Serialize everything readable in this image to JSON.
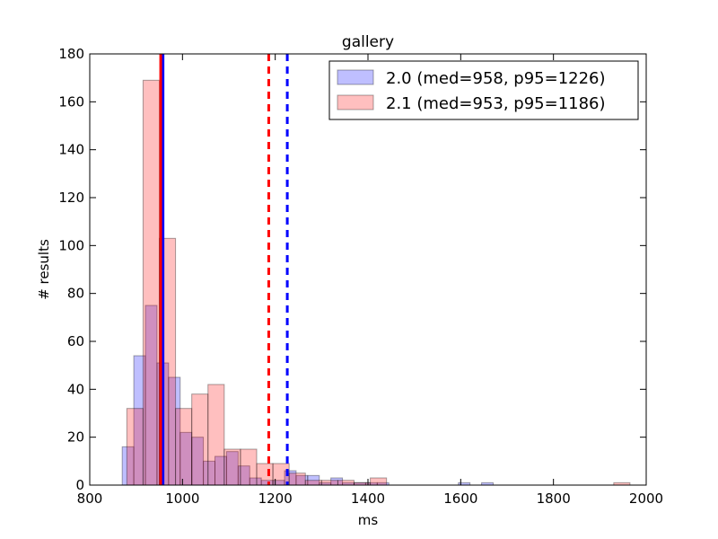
{
  "chart_data": {
    "type": "histogram",
    "title": "gallery",
    "xlabel": "ms",
    "ylabel": "# results",
    "xlim": [
      800,
      2000
    ],
    "ylim": [
      0,
      180
    ],
    "xticks": [
      800,
      1000,
      1200,
      1400,
      1600,
      1800,
      2000
    ],
    "yticks": [
      0,
      20,
      40,
      60,
      80,
      100,
      120,
      140,
      160,
      180
    ],
    "grid": false,
    "legend_position": "top-right",
    "series": [
      {
        "name": "2.0 (med=958, p95=1226)",
        "color": "#0000ff",
        "fill_opacity": 0.25,
        "median": 958,
        "p95": 1226,
        "bins": [
          {
            "x0": 870,
            "x1": 895,
            "count": 16
          },
          {
            "x0": 895,
            "x1": 920,
            "count": 54
          },
          {
            "x0": 920,
            "x1": 945,
            "count": 75
          },
          {
            "x0": 945,
            "x1": 970,
            "count": 51
          },
          {
            "x0": 970,
            "x1": 995,
            "count": 45
          },
          {
            "x0": 995,
            "x1": 1020,
            "count": 22
          },
          {
            "x0": 1020,
            "x1": 1045,
            "count": 20
          },
          {
            "x0": 1045,
            "x1": 1070,
            "count": 10
          },
          {
            "x0": 1070,
            "x1": 1095,
            "count": 12
          },
          {
            "x0": 1095,
            "x1": 1120,
            "count": 14
          },
          {
            "x0": 1120,
            "x1": 1145,
            "count": 8
          },
          {
            "x0": 1145,
            "x1": 1170,
            "count": 3
          },
          {
            "x0": 1170,
            "x1": 1195,
            "count": 2
          },
          {
            "x0": 1195,
            "x1": 1220,
            "count": 2
          },
          {
            "x0": 1220,
            "x1": 1245,
            "count": 6
          },
          {
            "x0": 1245,
            "x1": 1270,
            "count": 4
          },
          {
            "x0": 1270,
            "x1": 1295,
            "count": 4
          },
          {
            "x0": 1295,
            "x1": 1320,
            "count": 1
          },
          {
            "x0": 1320,
            "x1": 1345,
            "count": 3
          },
          {
            "x0": 1345,
            "x1": 1370,
            "count": 1
          },
          {
            "x0": 1370,
            "x1": 1395,
            "count": 1
          },
          {
            "x0": 1395,
            "x1": 1420,
            "count": 1
          },
          {
            "x0": 1420,
            "x1": 1445,
            "count": 1
          },
          {
            "x0": 1595,
            "x1": 1620,
            "count": 1
          },
          {
            "x0": 1645,
            "x1": 1670,
            "count": 1
          }
        ]
      },
      {
        "name": "2.1 (med=953, p95=1186)",
        "color": "#ff0000",
        "fill_opacity": 0.25,
        "median": 953,
        "p95": 1186,
        "bins": [
          {
            "x0": 880,
            "x1": 915,
            "count": 32
          },
          {
            "x0": 915,
            "x1": 950,
            "count": 169
          },
          {
            "x0": 950,
            "x1": 985,
            "count": 103
          },
          {
            "x0": 985,
            "x1": 1020,
            "count": 32
          },
          {
            "x0": 1020,
            "x1": 1055,
            "count": 38
          },
          {
            "x0": 1055,
            "x1": 1090,
            "count": 42
          },
          {
            "x0": 1090,
            "x1": 1125,
            "count": 15
          },
          {
            "x0": 1125,
            "x1": 1160,
            "count": 15
          },
          {
            "x0": 1160,
            "x1": 1195,
            "count": 9
          },
          {
            "x0": 1195,
            "x1": 1230,
            "count": 9
          },
          {
            "x0": 1230,
            "x1": 1265,
            "count": 5
          },
          {
            "x0": 1265,
            "x1": 1300,
            "count": 2
          },
          {
            "x0": 1300,
            "x1": 1335,
            "count": 2
          },
          {
            "x0": 1335,
            "x1": 1370,
            "count": 2
          },
          {
            "x0": 1370,
            "x1": 1405,
            "count": 1
          },
          {
            "x0": 1405,
            "x1": 1440,
            "count": 3
          },
          {
            "x0": 1930,
            "x1": 1965,
            "count": 1
          }
        ]
      }
    ]
  }
}
